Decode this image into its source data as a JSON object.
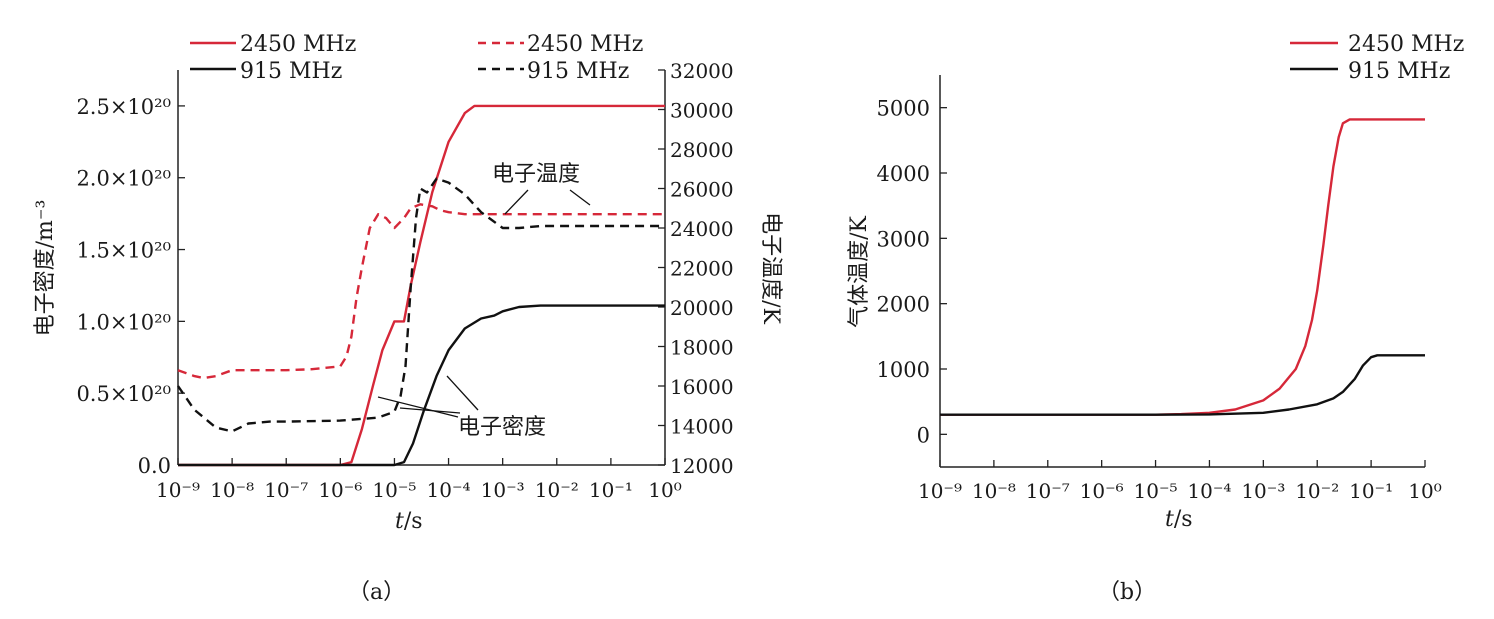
{
  "chart_data": [
    {
      "type": "line",
      "panel_label": "（a）",
      "xlabel_italic": "t",
      "xlabel_unit": "/s",
      "ylabel_left": "电子密度/m⁻³",
      "ylabel_right": "电子温度/K",
      "xscale": "log",
      "xlim": [
        1e-09,
        1
      ],
      "x_tick_labels": [
        "10⁻⁹",
        "10⁻⁸",
        "10⁻⁷",
        "10⁻⁶",
        "10⁻⁵",
        "10⁻⁴",
        "10⁻³",
        "10⁻²",
        "10⁻¹",
        "10⁰"
      ],
      "ylim_left": [
        0,
        2.75e+20
      ],
      "y_left_tick_labels": [
        "0.0",
        "0.5×10²⁰",
        "1.0×10²⁰",
        "1.5×10²⁰",
        "2.0×10²⁰",
        "2.5×10²⁰"
      ],
      "ylim_right": [
        12000,
        32000
      ],
      "y_right_tick_labels": [
        "12000",
        "14000",
        "16000",
        "18000",
        "20000",
        "22000",
        "24000",
        "26000",
        "28000",
        "30000",
        "32000"
      ],
      "grid": false,
      "legend_position": "top",
      "legend": [
        {
          "label": "2450 MHz",
          "color": "#d62839",
          "style": "solid"
        },
        {
          "label": "2450 MHz",
          "color": "#d62839",
          "style": "dashed"
        },
        {
          "label": "915 MHz",
          "color": "#111111",
          "style": "solid"
        },
        {
          "label": "915 MHz",
          "color": "#111111",
          "style": "dashed"
        }
      ],
      "annotations": [
        {
          "text": "电子温度",
          "points_to": "electron temperature curves"
        },
        {
          "text": "电子密度",
          "points_to": "electron density curves"
        }
      ],
      "series": [
        {
          "freq": "2450 MHz",
          "axis": "left",
          "color": "#d62839",
          "style": "solid",
          "x": [
            1e-09,
            1e-06,
            1.6e-06,
            2.5e-06,
            4e-06,
            6e-06,
            1e-05,
            1.5e-05,
            2e-05,
            3e-05,
            5e-05,
            0.0001,
            0.0002,
            0.0003,
            0.0005,
            0.001,
            0.1,
            1
          ],
          "y": [
            0,
            0,
            2e+18,
            2.5e+19,
            5.5e+19,
            8e+19,
            1e+20,
            1e+20,
            1.25e+20,
            1.55e+20,
            1.9e+20,
            2.25e+20,
            2.45e+20,
            2.5e+20,
            2.5e+20,
            2.5e+20,
            2.5e+20,
            2.5e+20
          ]
        },
        {
          "freq": "915 MHz",
          "axis": "left",
          "color": "#111111",
          "style": "solid",
          "x": [
            1e-09,
            1e-05,
            1.5e-05,
            2.2e-05,
            3.5e-05,
            6e-05,
            0.0001,
            0.0002,
            0.0004,
            0.0007,
            0.001,
            0.002,
            0.005,
            0.1,
            1
          ],
          "y": [
            0,
            0,
            2e+18,
            1.5e+19,
            3.8e+19,
            6.2e+19,
            8e+19,
            9.5e+19,
            1.02e+20,
            1.04e+20,
            1.07e+20,
            1.1e+20,
            1.11e+20,
            1.11e+20,
            1.11e+20
          ]
        },
        {
          "freq": "2450 MHz",
          "axis": "right",
          "color": "#d62839",
          "style": "dashed",
          "x": [
            1e-09,
            2e-09,
            3e-09,
            5e-09,
            1e-08,
            3e-08,
            1e-07,
            3e-07,
            1e-06,
            1.3e-06,
            1.6e-06,
            2e-06,
            2.5e-06,
            3.5e-06,
            5e-06,
            7e-06,
            1e-05,
            1.5e-05,
            2e-05,
            3e-05,
            5e-05,
            7e-05,
            0.0001,
            0.0002,
            0.0005,
            0.001,
            0.01,
            1
          ],
          "y": [
            16800,
            16500,
            16400,
            16500,
            16800,
            16800,
            16800,
            16850,
            17000,
            17500,
            18500,
            20500,
            22000,
            24000,
            24700,
            24500,
            24000,
            24500,
            25000,
            25200,
            25100,
            24900,
            24800,
            24700,
            24700,
            24700,
            24700,
            24700
          ]
        },
        {
          "freq": "915 MHz",
          "axis": "right",
          "color": "#111111",
          "style": "dashed",
          "x": [
            1e-09,
            2e-09,
            5e-09,
            1e-08,
            2e-08,
            5e-08,
            1e-07,
            1e-06,
            5e-06,
            1e-05,
            1.3e-05,
            1.6e-05,
            2e-05,
            2.5e-05,
            3e-05,
            4e-05,
            6e-05,
            0.0001,
            0.0002,
            0.0004,
            0.001,
            0.002,
            0.005,
            0.01,
            1
          ],
          "y": [
            16000,
            14800,
            13900,
            13700,
            14100,
            14200,
            14200,
            14250,
            14400,
            14700,
            15500,
            17000,
            21000,
            24500,
            26000,
            25800,
            26500,
            26300,
            25700,
            24800,
            24000,
            24000,
            24100,
            24100,
            24100
          ]
        }
      ]
    },
    {
      "type": "line",
      "panel_label": "（b）",
      "xlabel_italic": "t",
      "xlabel_unit": "/s",
      "ylabel": "气体温度/K",
      "xscale": "log",
      "xlim": [
        1e-09,
        1
      ],
      "x_tick_labels": [
        "10⁻⁹",
        "10⁻⁸",
        "10⁻⁷",
        "10⁻⁶",
        "10⁻⁵",
        "10⁻⁴",
        "10⁻³",
        "10⁻²",
        "10⁻¹",
        "10⁰"
      ],
      "ylim": [
        -500,
        5500
      ],
      "y_tick_values": [
        0,
        1000,
        2000,
        3000,
        4000,
        5000
      ],
      "y_tick_labels": [
        "0",
        "1000",
        "2000",
        "3000",
        "4000",
        "5000"
      ],
      "grid": false,
      "legend_position": "top-right",
      "legend": [
        {
          "label": "2450 MHz",
          "color": "#d62839",
          "style": "solid"
        },
        {
          "label": "915 MHz",
          "color": "#111111",
          "style": "solid"
        }
      ],
      "series": [
        {
          "freq": "2450 MHz",
          "color": "#d62839",
          "style": "solid",
          "x": [
            1e-09,
            1e-06,
            1e-05,
            3e-05,
            0.0001,
            0.0003,
            0.001,
            0.002,
            0.004,
            0.006,
            0.008,
            0.01,
            0.013,
            0.016,
            0.02,
            0.025,
            0.03,
            0.04,
            0.05,
            0.07,
            0.1,
            1
          ],
          "y": [
            300,
            300,
            300,
            310,
            330,
            380,
            520,
            700,
            1000,
            1350,
            1750,
            2200,
            2900,
            3500,
            4100,
            4550,
            4760,
            4820,
            4820,
            4820,
            4820,
            4820
          ]
        },
        {
          "freq": "915 MHz",
          "color": "#111111",
          "style": "solid",
          "x": [
            1e-09,
            1e-06,
            1e-05,
            0.0001,
            0.001,
            0.003,
            0.01,
            0.02,
            0.03,
            0.05,
            0.07,
            0.1,
            0.13,
            0.2,
            1
          ],
          "y": [
            300,
            300,
            300,
            305,
            330,
            380,
            460,
            550,
            650,
            850,
            1050,
            1180,
            1210,
            1210,
            1210
          ]
        }
      ]
    }
  ]
}
